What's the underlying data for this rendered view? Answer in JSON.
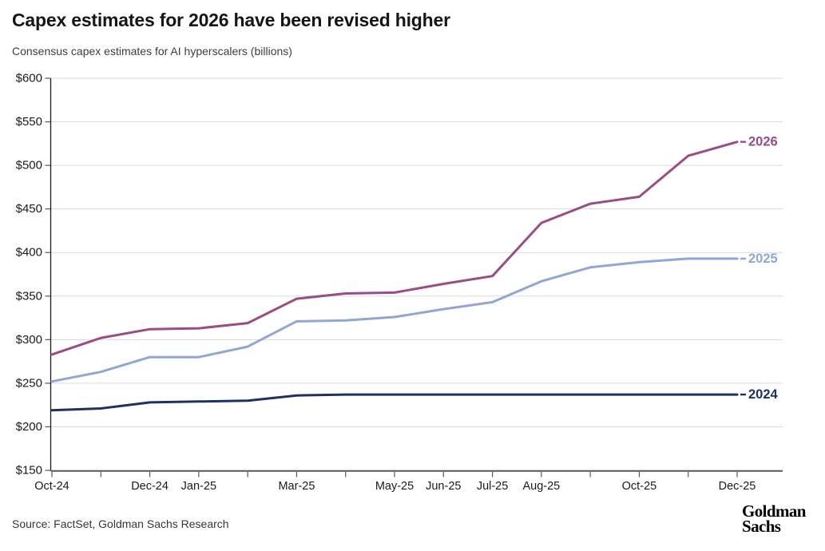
{
  "chart_data": {
    "type": "line",
    "title": "Capex estimates for 2026 have been revised higher",
    "subtitle": "Consensus capex estimates for AI hyperscalers (billions)",
    "x": [
      "Oct-24",
      "Nov-24",
      "Dec-24",
      "Jan-25",
      "Feb-25",
      "Mar-25",
      "Apr-25",
      "May-25",
      "Jun-25",
      "Jul-25",
      "Aug-25",
      "Sep-25",
      "Oct-25",
      "Nov-25",
      "Dec-25"
    ],
    "x_labels_shown": [
      "Oct-24",
      "Dec-24",
      "Jan-25",
      "Mar-25",
      "May-25",
      "Jun-25",
      "Jul-25",
      "Aug-25",
      "Oct-25",
      "Dec-25"
    ],
    "ylim": [
      150,
      600
    ],
    "ytick_step": 50,
    "ytick_prefix": "$",
    "grid": "horizontal",
    "legend_position": "line-end-labels",
    "series": [
      {
        "name": "2026",
        "color": "#9A4C86",
        "values": [
          283,
          302,
          312,
          313,
          319,
          347,
          353,
          354,
          364,
          373,
          434,
          456,
          464,
          511,
          527
        ]
      },
      {
        "name": "2025",
        "color": "#8FA6D6",
        "values": [
          252,
          263,
          280,
          280,
          292,
          321,
          322,
          326,
          335,
          343,
          367,
          383,
          389,
          393,
          393
        ]
      },
      {
        "name": "2024",
        "color": "#1F3061",
        "values": [
          219,
          221,
          228,
          229,
          230,
          236,
          237,
          237,
          237,
          237,
          237,
          237,
          237,
          237,
          237
        ]
      }
    ]
  },
  "footer": {
    "source": "Source: FactSet, Goldman Sachs Research",
    "logo": [
      "Goldman",
      "Sachs"
    ]
  },
  "colors": {
    "grid": "#DADADA",
    "y_axis": "#1A1A1A",
    "x_axis": "#54565B",
    "tick_text": "#1A1A1A"
  }
}
